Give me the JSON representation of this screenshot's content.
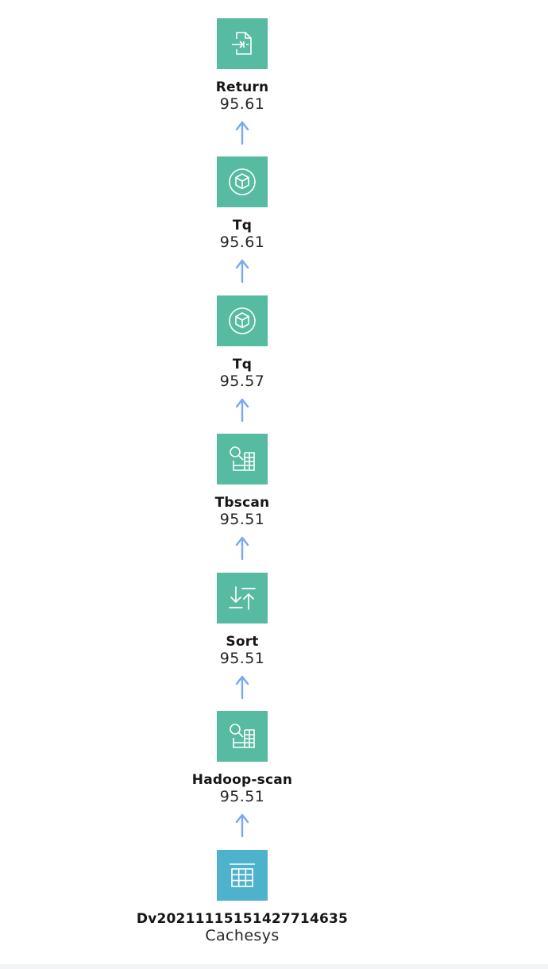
{
  "colors": {
    "operator_tile": "#56bba0",
    "table_tile": "#4fb2cc",
    "arrow": "#7aa7f0"
  },
  "nodes": [
    {
      "icon": "return-document-icon",
      "title": "Return",
      "value": "95.61"
    },
    {
      "icon": "cube-icon",
      "title": "Tq",
      "value": "95.61"
    },
    {
      "icon": "cube-icon",
      "title": "Tq",
      "value": "95.57"
    },
    {
      "icon": "table-scan-icon",
      "title": "Tbscan",
      "value": "95.51"
    },
    {
      "icon": "sort-icon",
      "title": "Sort",
      "value": "95.51"
    },
    {
      "icon": "table-scan-icon",
      "title": "Hadoop-scan",
      "value": "95.51"
    },
    {
      "icon": "table-grid-icon",
      "title": "Dv20211115151427714635",
      "value": "Cachesys"
    }
  ]
}
